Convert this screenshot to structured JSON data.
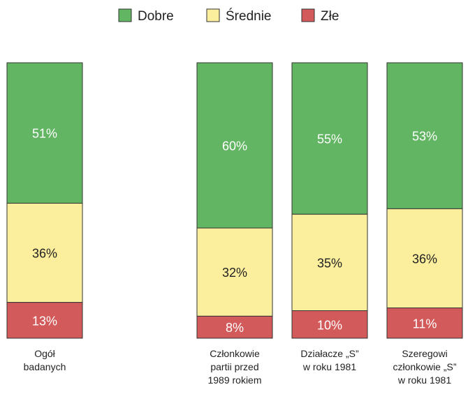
{
  "chart_data": {
    "type": "stacked_bar_100",
    "categories": [
      "Ogół\nbadanych",
      "Członkowie\npartii przed\n1989 rokiem",
      "Działacze „S”\nw roku 1981",
      "Szeregowi\nczłonkowie „S”\nw roku 1981"
    ],
    "series": [
      {
        "name": "Dobre",
        "color": "#62b562",
        "values": [
          51,
          60,
          55,
          53
        ],
        "value_labels": [
          "51%",
          "60%",
          "55%",
          "53%"
        ]
      },
      {
        "name": "Średnie",
        "color": "#fbee9c",
        "values": [
          36,
          32,
          35,
          36
        ],
        "value_labels": [
          "36%",
          "32%",
          "35%",
          "36%"
        ]
      },
      {
        "name": "Złe",
        "color": "#d35a5a",
        "values": [
          13,
          8,
          10,
          11
        ],
        "value_labels": [
          "13%",
          "8%",
          "10%",
          "11%"
        ]
      }
    ],
    "legend": "top"
  }
}
